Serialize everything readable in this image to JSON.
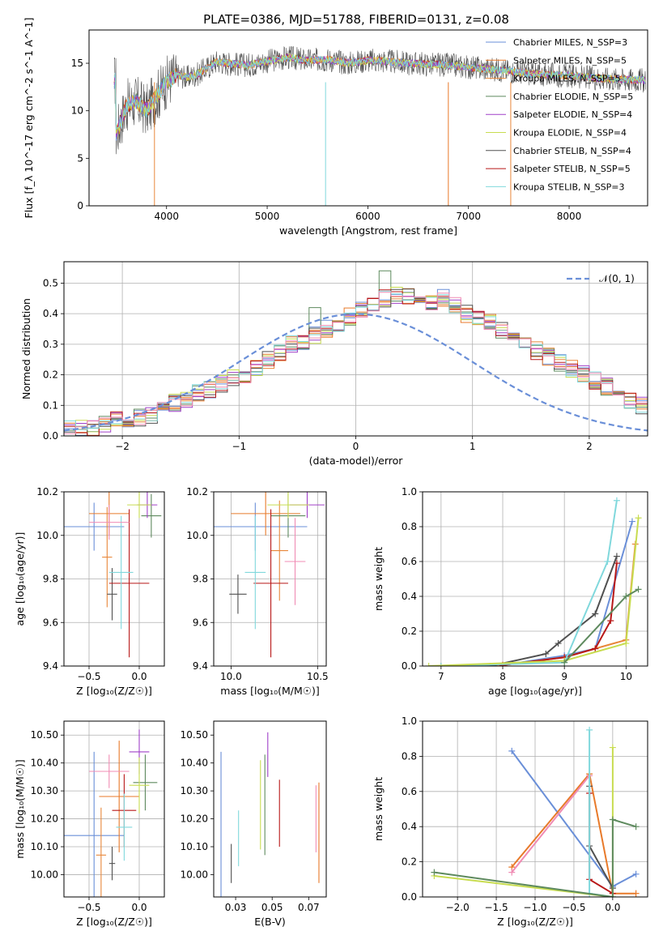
{
  "figure_title": "PLATE=0386, MJD=51788, FIBERID=0131, z=0.08",
  "colors": [
    "#6a8fd8",
    "#e87a2a",
    "#e8873a",
    "#5e8a5e",
    "#a040c8",
    "#c8dc50",
    "#505050",
    "#b81818",
    "#80d8dc",
    "#f08cb4"
  ],
  "chart_data": [
    {
      "id": "spectrum",
      "type": "line",
      "title": "PLATE=0386, MJD=51788, FIBERID=0131, z=0.08",
      "xlabel": "wavelength [Angstrom, rest frame]",
      "ylabel": "Flux [f_λ 10^-17 erg cm^-2 s^-1 A^-1]",
      "xlim": [
        3230,
        8780
      ],
      "ylim": [
        0,
        18.5
      ],
      "xticks": [
        4000,
        5000,
        6000,
        7000,
        8000
      ],
      "yticks": [
        0,
        5,
        10,
        15
      ],
      "grid": false,
      "legend_position": "right",
      "legend": [
        "Chabrier MILES, N_SSP=3",
        "Salpeter MILES, N_SSP=5",
        "Kroupa MILES, N_SSP=5",
        "Chabrier ELODIE, N_SSP=5",
        "Salpeter ELODIE, N_SSP=4",
        "Kroupa ELODIE, N_SSP=4",
        "Chabrier STELIB, N_SSP=4",
        "Salpeter STELIB, N_SSP=5",
        "Kroupa STELIB, N_SSP=3"
      ],
      "continuum": {
        "x": [
          3500,
          3600,
          3700,
          3800,
          3900,
          4000,
          4100,
          4200,
          4300,
          4400,
          4500,
          4600,
          4800,
          5000,
          5200,
          5400,
          5600,
          5800,
          6000,
          6200,
          6400,
          6600,
          6800,
          7000,
          7200,
          7400,
          7600,
          7800,
          8000,
          8200,
          8500,
          8750
        ],
        "y": [
          7.5,
          10.5,
          11.0,
          10.0,
          11.5,
          13.0,
          13.8,
          13.5,
          13.8,
          14.5,
          15.2,
          15.0,
          14.8,
          15.2,
          15.6,
          15.3,
          15.4,
          15.0,
          15.3,
          15.2,
          15.0,
          14.9,
          14.8,
          14.6,
          14.4,
          14.2,
          13.9,
          13.8,
          13.7,
          13.5,
          13.3,
          13.2
        ]
      }
    },
    {
      "id": "residuals",
      "type": "line",
      "xlabel": "(data-model)/error",
      "ylabel": "Normed distribution",
      "xlim": [
        -2.5,
        2.5
      ],
      "ylim": [
        0,
        0.57
      ],
      "xticks": [
        -2,
        -1,
        0,
        1,
        2
      ],
      "yticks": [
        0.0,
        0.1,
        0.2,
        0.3,
        0.4,
        0.5
      ],
      "grid": true,
      "legend_position": "upper right",
      "legend": [
        "𝒩(0, 1)"
      ],
      "gaussian": {
        "mean": 0,
        "sigma": 1
      },
      "bin_edges_range": [
        -2.6,
        2.6
      ],
      "bin_width": 0.1,
      "histogram": [
        0.015,
        0.02,
        0.025,
        0.03,
        0.04,
        0.05,
        0.055,
        0.06,
        0.07,
        0.09,
        0.11,
        0.12,
        0.14,
        0.15,
        0.17,
        0.19,
        0.2,
        0.22,
        0.25,
        0.27,
        0.3,
        0.31,
        0.33,
        0.35,
        0.37,
        0.39,
        0.41,
        0.43,
        0.45,
        0.46,
        0.46,
        0.45,
        0.44,
        0.45,
        0.43,
        0.4,
        0.38,
        0.37,
        0.35,
        0.32,
        0.3,
        0.28,
        0.26,
        0.24,
        0.22,
        0.2,
        0.18,
        0.16,
        0.14,
        0.12,
        0.1
      ],
      "peak_bins": {
        "0.25": 0.54,
        "0.85": 0.42,
        "-0.35": 0.42
      }
    },
    {
      "id": "age_vs_Z",
      "type": "scatter",
      "xlabel": "Z [log₁₀(Z/Z☉)]",
      "ylabel": "age  [log₁₀(age/yr)]",
      "xlim": [
        -0.75,
        0.25
      ],
      "ylim": [
        9.4,
        10.2
      ],
      "xticks": [
        -0.5,
        0.0
      ],
      "yticks": [
        9.4,
        9.6,
        9.8,
        10.0,
        10.2
      ],
      "grid": true,
      "points": [
        {
          "x": -0.45,
          "y": 10.04,
          "xerr": 0.3,
          "yerr": 0.11,
          "c": 0
        },
        {
          "x": -0.3,
          "y": 10.1,
          "xerr": 0.2,
          "yerr": 0.1,
          "c": 1
        },
        {
          "x": -0.32,
          "y": 9.9,
          "xerr": 0.05,
          "yerr": 0.23,
          "c": 2
        },
        {
          "x": 0.12,
          "y": 10.09,
          "xerr": 0.1,
          "yerr": 0.1,
          "c": 3
        },
        {
          "x": 0.08,
          "y": 10.14,
          "xerr": 0.1,
          "yerr": 0.06,
          "c": 4
        },
        {
          "x": 0.0,
          "y": 10.14,
          "xerr": 0.12,
          "yerr": 0.06,
          "c": 5
        },
        {
          "x": -0.27,
          "y": 9.73,
          "xerr": 0.05,
          "yerr": 0.12,
          "c": 6
        },
        {
          "x": -0.1,
          "y": 9.78,
          "xerr": 0.2,
          "yerr": 0.34,
          "c": 7
        },
        {
          "x": -0.18,
          "y": 9.83,
          "xerr": 0.12,
          "yerr": 0.26,
          "c": 8
        },
        {
          "x": -0.3,
          "y": 10.06,
          "xerr": 0.2,
          "yerr": 0.08,
          "c": 9
        }
      ]
    },
    {
      "id": "age_vs_mass",
      "type": "scatter",
      "xlabel": "mass [log₁₀(M/M☉)]",
      "ylabel": "",
      "xlim": [
        9.9,
        10.55
      ],
      "ylim": [
        9.4,
        10.2
      ],
      "xticks": [
        10.0,
        10.5
      ],
      "yticks": [
        9.4,
        9.6,
        9.8,
        10.0,
        10.2
      ],
      "grid": true,
      "points": [
        {
          "x": 10.14,
          "y": 10.04,
          "xerr": 0.3,
          "yerr": 0.11,
          "c": 0
        },
        {
          "x": 10.2,
          "y": 10.1,
          "xerr": 0.2,
          "yerr": 0.1,
          "c": 1
        },
        {
          "x": 10.28,
          "y": 9.93,
          "xerr": 0.05,
          "yerr": 0.23,
          "c": 2
        },
        {
          "x": 10.33,
          "y": 10.09,
          "xerr": 0.1,
          "yerr": 0.1,
          "c": 3
        },
        {
          "x": 10.44,
          "y": 10.14,
          "xerr": 0.1,
          "yerr": 0.06,
          "c": 4
        },
        {
          "x": 10.33,
          "y": 10.14,
          "xerr": 0.12,
          "yerr": 0.06,
          "c": 5
        },
        {
          "x": 10.04,
          "y": 9.73,
          "xerr": 0.05,
          "yerr": 0.09,
          "c": 6
        },
        {
          "x": 10.23,
          "y": 9.78,
          "xerr": 0.1,
          "yerr": 0.34,
          "c": 7
        },
        {
          "x": 10.14,
          "y": 9.83,
          "xerr": 0.06,
          "yerr": 0.26,
          "c": 8
        },
        {
          "x": 10.37,
          "y": 9.88,
          "xerr": 0.06,
          "yerr": 0.2,
          "c": 9
        }
      ]
    },
    {
      "id": "mass_weight_vs_age",
      "type": "line",
      "xlabel": "age  [log₁₀(age/yr)]",
      "ylabel": "mass weight",
      "xlim": [
        6.7,
        10.35
      ],
      "ylim": [
        0,
        1
      ],
      "xticks": [
        7,
        8,
        9,
        10
      ],
      "yticks": [
        0.0,
        0.2,
        0.4,
        0.6,
        0.8,
        1.0
      ],
      "grid": true,
      "series": [
        {
          "c": 0,
          "x": [
            7.0,
            8.0,
            9.0,
            9.5,
            10.1
          ],
          "y": [
            0.0,
            0.005,
            0.06,
            0.1,
            0.83
          ]
        },
        {
          "c": 2,
          "x": [
            7.0,
            8.0,
            9.0,
            9.5,
            10.0,
            10.15
          ],
          "y": [
            0.0,
            0.005,
            0.05,
            0.1,
            0.15,
            0.7
          ]
        },
        {
          "c": 7,
          "x": [
            8.0,
            9.0,
            9.5,
            9.75,
            9.85
          ],
          "y": [
            0.005,
            0.05,
            0.1,
            0.26,
            0.59
          ]
        },
        {
          "c": 6,
          "x": [
            7.8,
            8.7,
            8.9,
            9.5,
            9.85
          ],
          "y": [
            0.0,
            0.07,
            0.13,
            0.3,
            0.63
          ]
        },
        {
          "c": 8,
          "x": [
            7.0,
            9.0,
            9.7,
            9.85
          ],
          "y": [
            0.0,
            0.02,
            0.6,
            0.95
          ]
        },
        {
          "c": 5,
          "x": [
            6.8,
            9.0,
            10.0,
            10.2
          ],
          "y": [
            0.0,
            0.03,
            0.13,
            0.85
          ]
        },
        {
          "c": 3,
          "x": [
            9.0,
            10.0,
            10.2
          ],
          "y": [
            0.02,
            0.4,
            0.44
          ]
        }
      ]
    },
    {
      "id": "mass_vs_Z",
      "type": "scatter",
      "xlabel": "Z [log₁₀(Z/Z☉)]",
      "ylabel": "mass [log₁₀(M/M☉)]",
      "xlim": [
        -0.75,
        0.25
      ],
      "ylim": [
        9.92,
        10.55
      ],
      "xticks": [
        -0.5,
        0.0
      ],
      "yticks": [
        10.0,
        10.1,
        10.2,
        10.3,
        10.4,
        10.5
      ],
      "grid": true,
      "points": [
        {
          "x": -0.45,
          "y": 10.14,
          "xerr": 0.3,
          "yerr": 0.3,
          "c": 0
        },
        {
          "x": -0.2,
          "y": 10.28,
          "xerr": 0.2,
          "yerr": 0.2,
          "c": 1
        },
        {
          "x": -0.38,
          "y": 10.07,
          "xerr": 0.05,
          "yerr": 0.17,
          "c": 2
        },
        {
          "x": 0.06,
          "y": 10.33,
          "xerr": 0.12,
          "yerr": 0.1,
          "c": 3
        },
        {
          "x": 0.0,
          "y": 10.44,
          "xerr": 0.1,
          "yerr": 0.08,
          "c": 4
        },
        {
          "x": 0.0,
          "y": 10.32,
          "xerr": 0.1,
          "yerr": 0.1,
          "c": 5
        },
        {
          "x": -0.27,
          "y": 10.04,
          "xerr": 0.03,
          "yerr": 0.06,
          "c": 6
        },
        {
          "x": -0.15,
          "y": 10.23,
          "xerr": 0.12,
          "yerr": 0.13,
          "c": 7
        },
        {
          "x": -0.15,
          "y": 10.17,
          "xerr": 0.08,
          "yerr": 0.12,
          "c": 8
        },
        {
          "x": -0.3,
          "y": 10.37,
          "xerr": 0.2,
          "yerr": 0.06,
          "c": 9
        }
      ]
    },
    {
      "id": "mass_vs_EBV",
      "type": "scatter",
      "xlabel": "E(B-V)",
      "ylabel": "",
      "xlim": [
        0.01,
        0.087
      ],
      "ylim": [
        9.92,
        10.55
      ],
      "xticks": [
        0.025,
        0.05,
        0.075
      ],
      "yticks": [
        10.0,
        10.1,
        10.2,
        10.3,
        10.4,
        10.5
      ],
      "grid": false,
      "points": [
        {
          "x": 0.015,
          "y": 10.14,
          "yerr": 0.3,
          "c": 0
        },
        {
          "x": 0.082,
          "y": 10.15,
          "yerr": 0.18,
          "c": 1
        },
        {
          "x": 0.022,
          "y": 10.04,
          "yerr": 0.07,
          "c": 6
        },
        {
          "x": 0.027,
          "y": 10.13,
          "yerr": 0.1,
          "c": 8
        },
        {
          "x": 0.042,
          "y": 10.25,
          "yerr": 0.16,
          "c": 5
        },
        {
          "x": 0.045,
          "y": 10.25,
          "yerr": 0.18,
          "c": 3
        },
        {
          "x": 0.047,
          "y": 10.43,
          "yerr": 0.08,
          "c": 4
        },
        {
          "x": 0.055,
          "y": 10.22,
          "yerr": 0.12,
          "c": 7
        },
        {
          "x": 0.08,
          "y": 10.2,
          "yerr": 0.12,
          "c": 9
        }
      ]
    },
    {
      "id": "mass_weight_vs_Z",
      "type": "line",
      "xlabel": "Z [log₁₀(Z/Z☉)]",
      "ylabel": "mass weight",
      "xlim": [
        -2.45,
        0.45
      ],
      "ylim": [
        0,
        1
      ],
      "xticks": [
        -2.0,
        -1.5,
        -1.0,
        -0.5,
        0.0
      ],
      "yticks": [
        0.0,
        0.2,
        0.4,
        0.6,
        0.8,
        1.0
      ],
      "grid": true,
      "series": [
        {
          "c": 0,
          "x": [
            -1.3,
            0.0,
            0.3
          ],
          "y": [
            0.83,
            0.06,
            0.13
          ]
        },
        {
          "c": 1,
          "x": [
            -1.3,
            -0.3,
            0.0,
            0.3
          ],
          "y": [
            0.17,
            0.7,
            0.02,
            0.02
          ]
        },
        {
          "c": 9,
          "x": [
            -1.3,
            -0.3
          ],
          "y": [
            0.14,
            0.69
          ]
        },
        {
          "c": 6,
          "x": [
            -0.3,
            -0.3,
            0.0
          ],
          "y": [
            0.63,
            0.29,
            0.05
          ]
        },
        {
          "c": 7,
          "x": [
            -0.3,
            -0.3,
            0.0
          ],
          "y": [
            0.59,
            0.1,
            0.02
          ]
        },
        {
          "c": 8,
          "x": [
            -0.3,
            -0.3,
            0.0
          ],
          "y": [
            0.95,
            0.02,
            0.0
          ]
        },
        {
          "c": 5,
          "x": [
            -2.3,
            0.0,
            0.0
          ],
          "y": [
            0.12,
            0.0,
            0.85
          ]
        },
        {
          "c": 3,
          "x": [
            -2.3,
            0.0,
            0.0,
            0.3
          ],
          "y": [
            0.14,
            0.0,
            0.44,
            0.4
          ]
        }
      ]
    }
  ]
}
